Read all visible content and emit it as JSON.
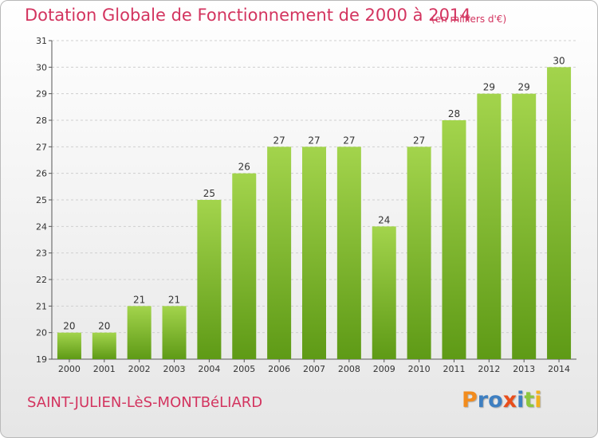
{
  "header": {
    "title": "Dotation Globale de Fonctionnement de 2000 à 2014",
    "unit": "(en milliers d'€)"
  },
  "footer": {
    "commune": "SAINT-JULIEN-LèS-MONTBéLIARD",
    "brand": "Proxiti"
  },
  "colors": {
    "title": "#d3345f",
    "bar_light": "#a3d44c",
    "bar_dark": "#5e9a16",
    "grid": "#cfcfcf",
    "brand_letters": [
      "#f28c1e",
      "#3e7fc1",
      "#3e7fc1",
      "#e94e1b",
      "#3e7fc1",
      "#8cc63f",
      "#f2b21e"
    ]
  },
  "chart_data": {
    "type": "bar",
    "title": "Dotation Globale de Fonctionnement de 2000 à 2014",
    "subtitle": "(en milliers d'€)",
    "xlabel": "",
    "ylabel": "",
    "categories": [
      "2000",
      "2001",
      "2002",
      "2003",
      "2004",
      "2005",
      "2006",
      "2007",
      "2008",
      "2009",
      "2010",
      "2011",
      "2012",
      "2013",
      "2014"
    ],
    "values": [
      20,
      20,
      21,
      21,
      25,
      26,
      27,
      27,
      27,
      24,
      27,
      28,
      29,
      29,
      30
    ],
    "data_labels": [
      "20",
      "20",
      "21",
      "21",
      "25",
      "26",
      "27",
      "27",
      "27",
      "24",
      "27",
      "28",
      "29",
      "29",
      "30"
    ],
    "ylim": [
      19,
      31
    ],
    "yticks": [
      19,
      20,
      21,
      22,
      23,
      24,
      25,
      26,
      27,
      28,
      29,
      30,
      31
    ],
    "grid": true,
    "legend": "none"
  }
}
